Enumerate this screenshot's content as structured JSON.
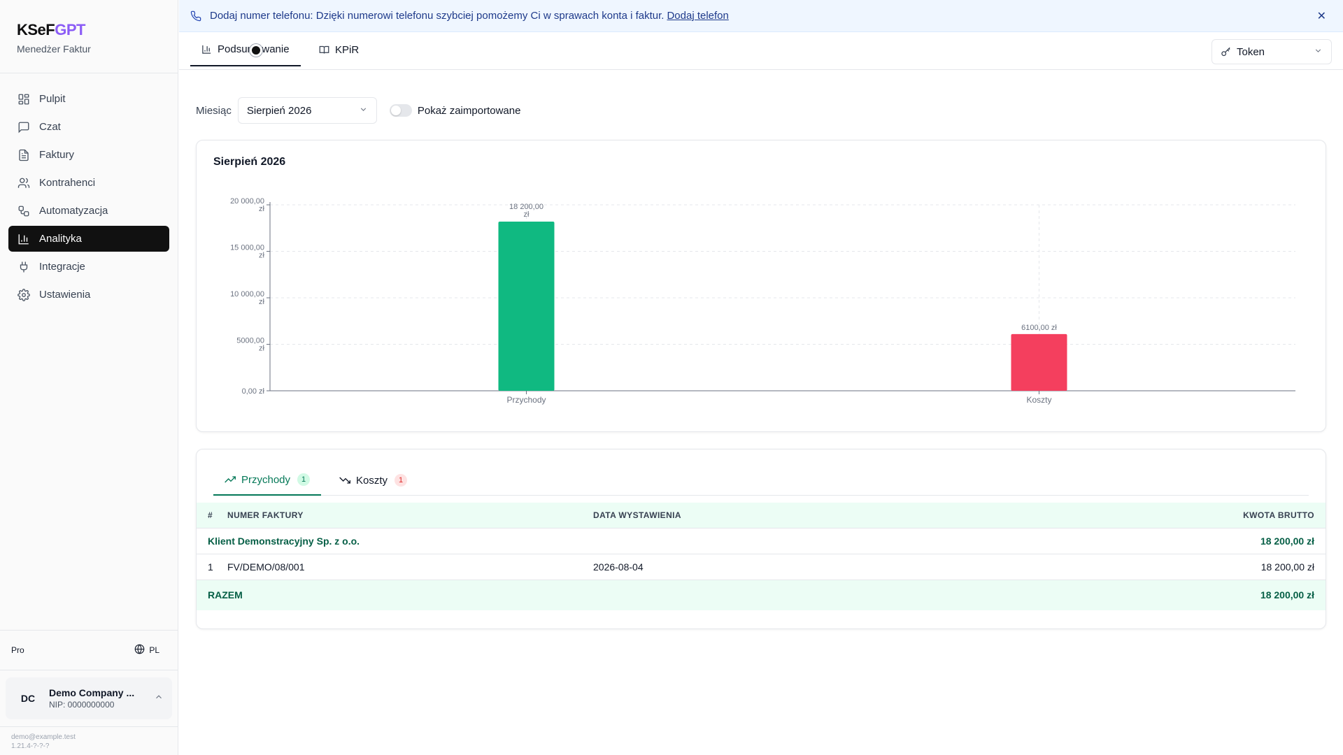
{
  "brand": {
    "name_part1": "KSeF",
    "name_part2": "GPT",
    "subtitle": "Menedżer Faktur",
    "accent": "#8b5cf6"
  },
  "sidebar": {
    "items": [
      {
        "label": "Pulpit",
        "icon": "grid-icon"
      },
      {
        "label": "Czat",
        "icon": "chat-icon"
      },
      {
        "label": "Faktury",
        "icon": "document-icon"
      },
      {
        "label": "Kontrahenci",
        "icon": "users-icon"
      },
      {
        "label": "Automatyzacja",
        "icon": "workflow-icon"
      },
      {
        "label": "Analityka",
        "icon": "bar-chart-icon",
        "active": true
      },
      {
        "label": "Integracje",
        "icon": "plug-icon"
      },
      {
        "label": "Ustawienia",
        "icon": "gear-icon"
      }
    ],
    "plan": "Pro",
    "language": "PL",
    "company": {
      "initials": "DC",
      "name": "Demo Company ...",
      "nip": "NIP: 0000000000"
    },
    "email": "demo@example.test",
    "version": "1.21.4-?-?-?"
  },
  "banner": {
    "text": "Dodaj numer telefonu: Dzięki numerowi telefonu szybciej pomożemy Ci w sprawach konta i faktur.",
    "link": "Dodaj telefon",
    "close": "✕"
  },
  "tabs": {
    "summary": "Podsumowanie",
    "kpir": "KPiR"
  },
  "token": {
    "label": "Token"
  },
  "filters": {
    "month_label": "Miesiąc",
    "month_value": "Sierpień 2026",
    "toggle_label": "Pokaż zaimportowane"
  },
  "chart_data": {
    "type": "bar",
    "title": "Sierpień 2026",
    "categories": [
      "Przychody",
      "Koszty"
    ],
    "values": [
      18200,
      6100
    ],
    "value_labels": [
      "18 200,00 zł",
      "6100,00 zł"
    ],
    "colors": [
      "#10b981",
      "#f43f5e"
    ],
    "ylim": [
      0,
      20000
    ],
    "yticks": [
      {
        "value": 20000,
        "label": "20 000,00 zł"
      },
      {
        "value": 15000,
        "label": "15 000,00 zł"
      },
      {
        "value": 10000,
        "label": "10 000,00 zł"
      },
      {
        "value": 5000,
        "label": "5000,00 zł"
      },
      {
        "value": 0,
        "label": "0,00 zł"
      }
    ],
    "grid": true
  },
  "table_section": {
    "tabs": [
      {
        "label": "Przychody",
        "count": "1"
      },
      {
        "label": "Koszty",
        "count": "1"
      }
    ],
    "columns": {
      "num": "#",
      "invoice": "NUMER FAKTURY",
      "date": "DATA WYSTAWIENIA",
      "amount": "KWOTA BRUTTO"
    },
    "group": {
      "name": "Klient Demonstracyjny Sp. z o.o.",
      "amount": "18 200,00 zł"
    },
    "rows": [
      {
        "num": "1",
        "invoice": "FV/DEMO/08/001",
        "date": "2026-08-04",
        "amount": "18 200,00 zł"
      }
    ],
    "total": {
      "label": "RAZEM",
      "amount": "18 200,00 zł"
    }
  }
}
